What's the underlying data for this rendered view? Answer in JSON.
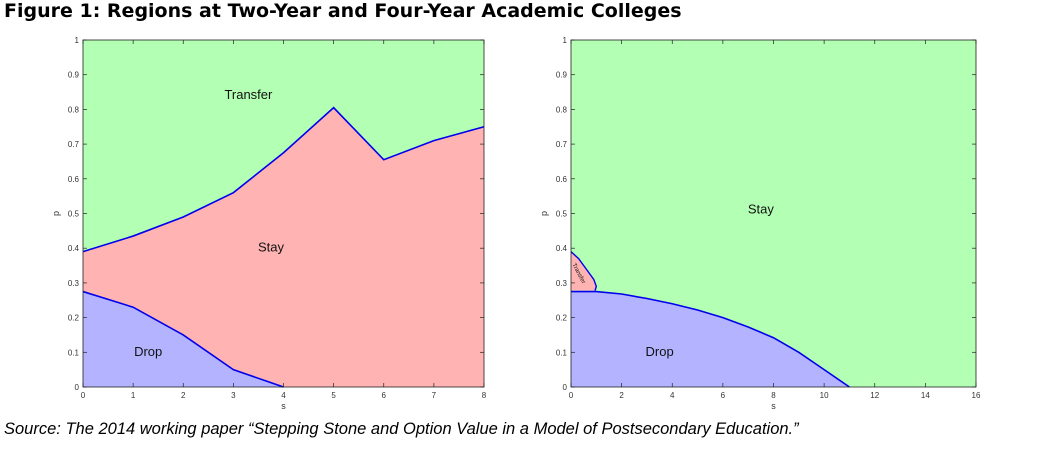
{
  "title": "Figure 1: Regions at Two-Year and Four-Year Academic Colleges",
  "source": "Source: The 2014 working paper “Stepping Stone and Option Value in a Model of Postsecondary Education.”",
  "colors": {
    "transfer": "#b3ffb3",
    "stay": "#ffb3b3",
    "drop": "#b3b3ff",
    "boundary": "#0000ee"
  },
  "chart_data": [
    {
      "type": "area",
      "xlabel": "s",
      "ylabel": "p",
      "xlim": [
        0,
        8
      ],
      "ylim": [
        0,
        1
      ],
      "xticks": [
        0,
        1,
        2,
        3,
        4,
        5,
        6,
        7,
        8
      ],
      "yticks": [
        0,
        0.1,
        0.2,
        0.3,
        0.4,
        0.5,
        0.6,
        0.7,
        0.8,
        0.9,
        1
      ],
      "grid": false,
      "regions": [
        {
          "name": "Transfer",
          "label_at": [
            3.3,
            0.83
          ]
        },
        {
          "name": "Stay",
          "label_at": [
            3.75,
            0.39
          ]
        },
        {
          "name": "Drop",
          "label_at": [
            1.3,
            0.09
          ]
        }
      ],
      "boundaries": {
        "stay_transfer": [
          [
            0,
            0.39
          ],
          [
            1,
            0.435
          ],
          [
            2,
            0.49
          ],
          [
            3,
            0.56
          ],
          [
            4,
            0.675
          ],
          [
            5,
            0.805
          ],
          [
            6,
            0.655
          ],
          [
            7,
            0.71
          ],
          [
            8,
            0.75
          ]
        ],
        "drop_stay": [
          [
            0,
            0.275
          ],
          [
            1,
            0.23
          ],
          [
            2,
            0.15
          ],
          [
            3,
            0.05
          ],
          [
            4,
            0.0
          ]
        ]
      }
    },
    {
      "type": "area",
      "xlabel": "s",
      "ylabel": "p",
      "xlim": [
        0,
        16
      ],
      "ylim": [
        0,
        1
      ],
      "xticks": [
        0,
        2,
        4,
        6,
        8,
        10,
        12,
        14,
        16
      ],
      "yticks": [
        0,
        0.1,
        0.2,
        0.3,
        0.4,
        0.5,
        0.6,
        0.7,
        0.8,
        0.9,
        1
      ],
      "grid": false,
      "regions": [
        {
          "name": "Stay",
          "label_at": [
            7.5,
            0.5
          ]
        },
        {
          "name": "Drop",
          "label_at": [
            3.5,
            0.09
          ]
        },
        {
          "name": "Transfer",
          "label_at": [
            0.25,
            0.325
          ]
        }
      ],
      "boundaries": {
        "drop_stay": [
          [
            0,
            0.275
          ],
          [
            1,
            0.275
          ],
          [
            2,
            0.268
          ],
          [
            3,
            0.255
          ],
          [
            4,
            0.24
          ],
          [
            5,
            0.222
          ],
          [
            6,
            0.2
          ],
          [
            7,
            0.173
          ],
          [
            8,
            0.142
          ],
          [
            9,
            0.1
          ],
          [
            10,
            0.05
          ],
          [
            11,
            0.0
          ]
        ],
        "transfer_pocket": [
          [
            0,
            0.39
          ],
          [
            0.3,
            0.37
          ],
          [
            0.6,
            0.34
          ],
          [
            0.9,
            0.31
          ],
          [
            1.0,
            0.29
          ],
          [
            0.95,
            0.278
          ]
        ]
      }
    }
  ]
}
